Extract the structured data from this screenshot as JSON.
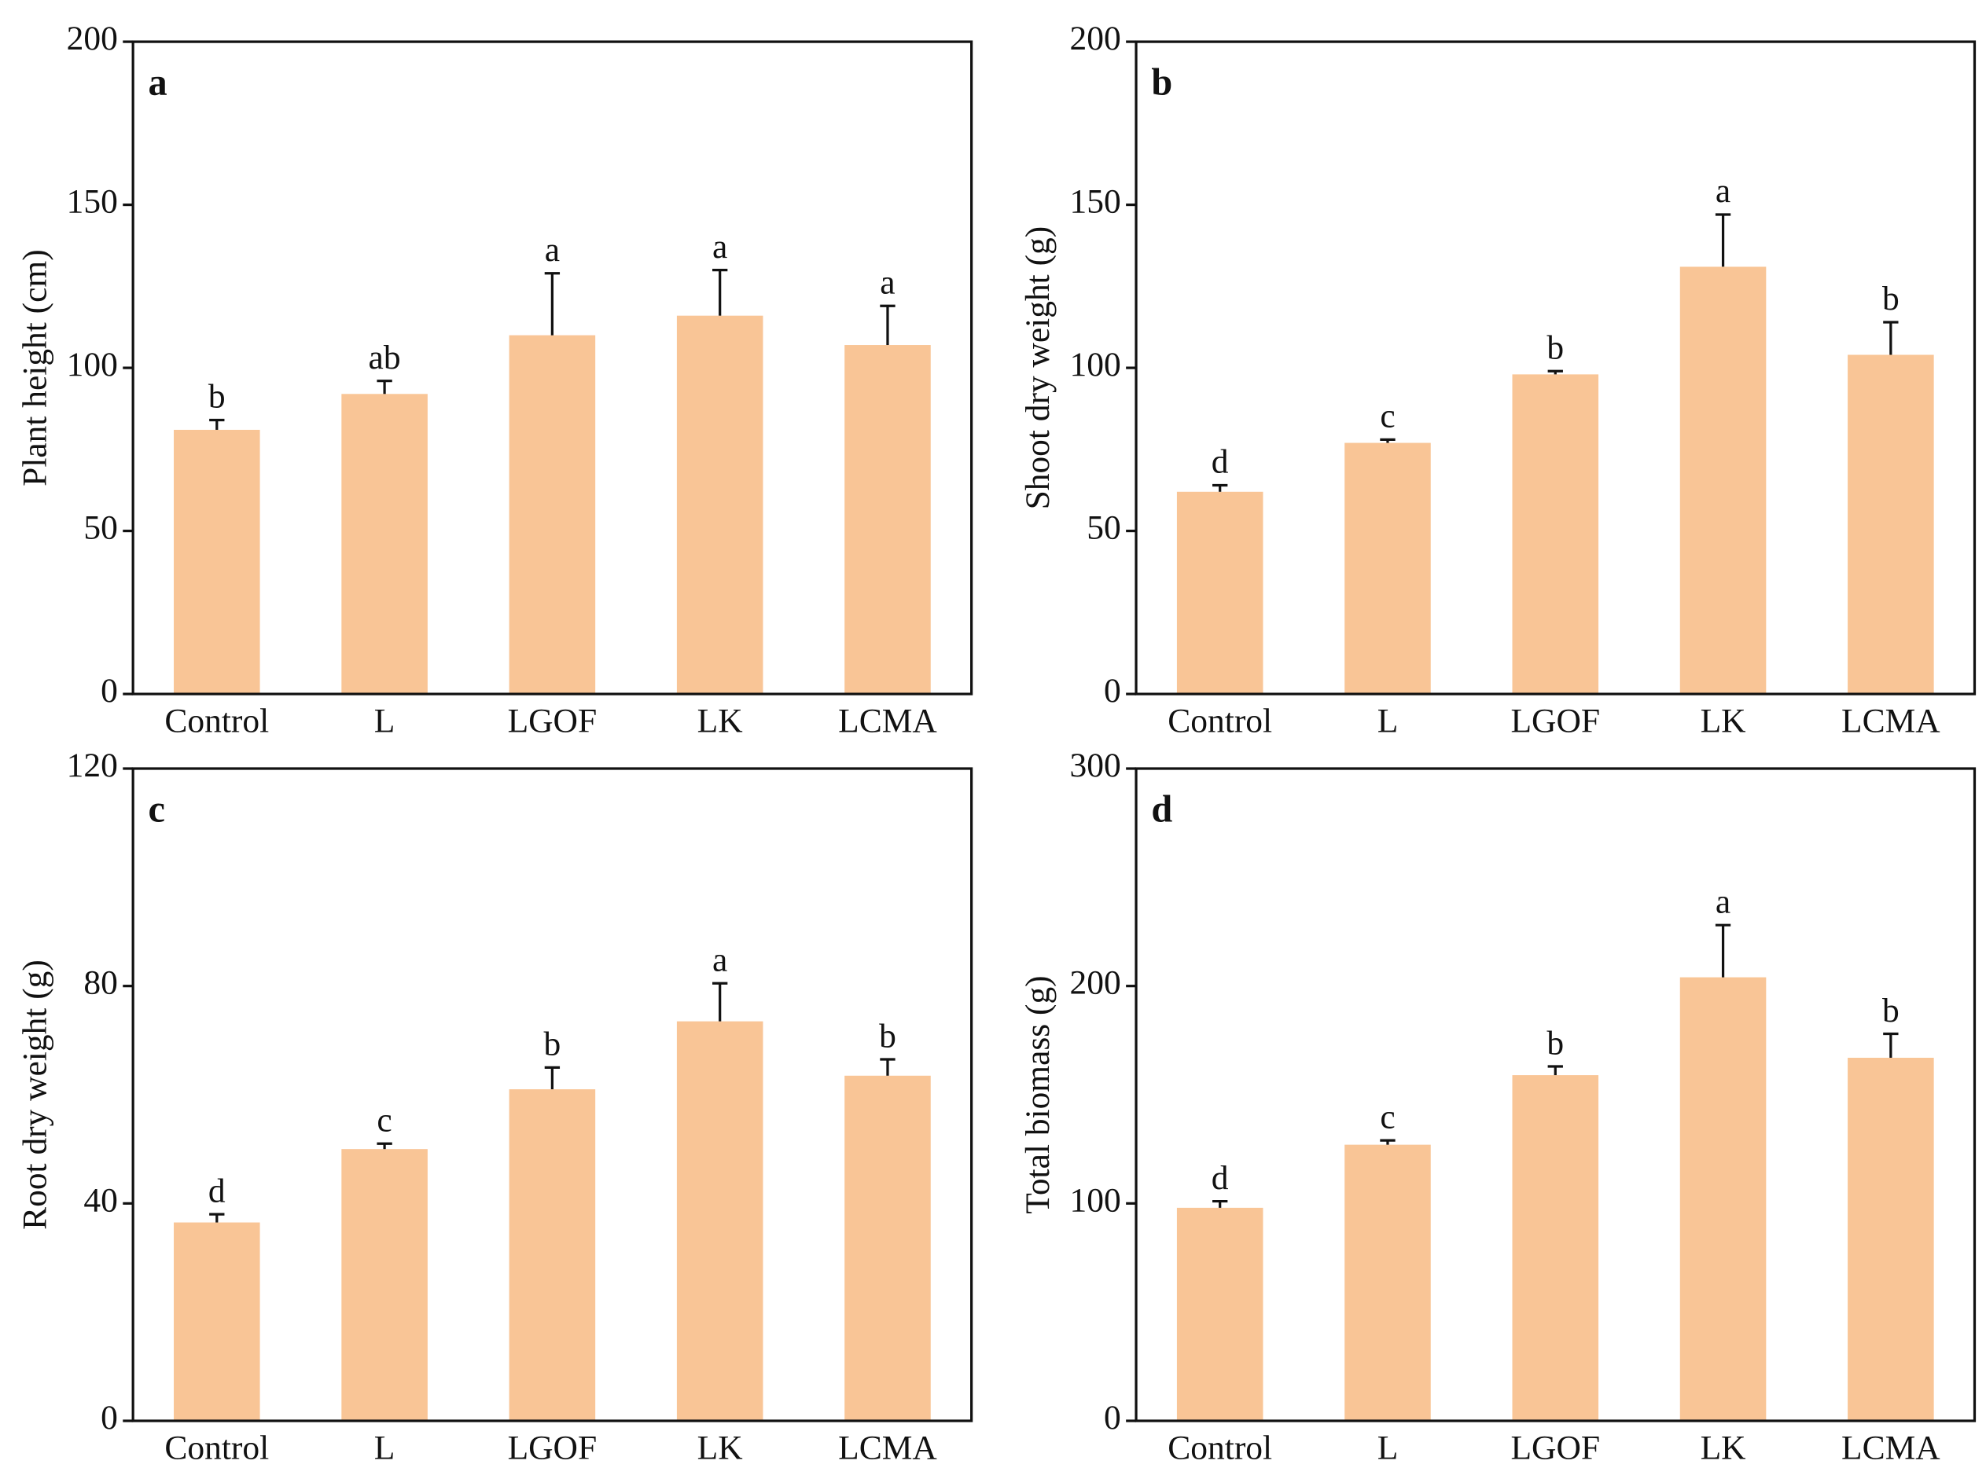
{
  "chart_data": [
    {
      "type": "bar",
      "panel": "a",
      "ylabel": "Plant height (cm)",
      "categories": [
        "Control",
        "L",
        "LGOF",
        "LK",
        "LCMA"
      ],
      "values": [
        81,
        92,
        110,
        116,
        107
      ],
      "errors": [
        3,
        4,
        19,
        14,
        12
      ],
      "letters": [
        "b",
        "ab",
        "a",
        "a",
        "a"
      ],
      "color": "#f9c596",
      "ylim": [
        0,
        200
      ],
      "yticks": [
        0,
        50,
        100,
        150,
        200
      ]
    },
    {
      "type": "bar",
      "panel": "b",
      "ylabel": "Shoot dry weight (g)",
      "categories": [
        "Control",
        "L",
        "LGOF",
        "LK",
        "LCMA"
      ],
      "values": [
        62,
        77,
        98,
        131,
        104
      ],
      "errors": [
        2,
        1,
        1,
        16,
        10
      ],
      "letters": [
        "d",
        "c",
        "b",
        "a",
        "b"
      ],
      "color": "#f9c596",
      "ylim": [
        0,
        200
      ],
      "yticks": [
        0,
        50,
        100,
        150,
        200
      ]
    },
    {
      "type": "bar",
      "panel": "c",
      "ylabel": "Root dry weight (g)",
      "categories": [
        "Control",
        "L",
        "LGOF",
        "LK",
        "LCMA"
      ],
      "values": [
        36.5,
        50,
        61,
        73.5,
        63.5
      ],
      "errors": [
        1.5,
        1,
        4,
        7,
        3
      ],
      "letters": [
        "d",
        "c",
        "b",
        "a",
        "b"
      ],
      "color": "#f9c596",
      "ylim": [
        0,
        120
      ],
      "yticks": [
        0,
        40,
        80,
        120
      ]
    },
    {
      "type": "bar",
      "panel": "d",
      "ylabel": "Total biomass (g)",
      "categories": [
        "Control",
        "L",
        "LGOF",
        "LK",
        "LCMA"
      ],
      "values": [
        98,
        127,
        159,
        204,
        167
      ],
      "errors": [
        3,
        2,
        4,
        24,
        11
      ],
      "letters": [
        "d",
        "c",
        "b",
        "a",
        "b"
      ],
      "color": "#f9c596",
      "ylim": [
        0,
        300
      ],
      "yticks": [
        0,
        100,
        200,
        300
      ]
    }
  ]
}
